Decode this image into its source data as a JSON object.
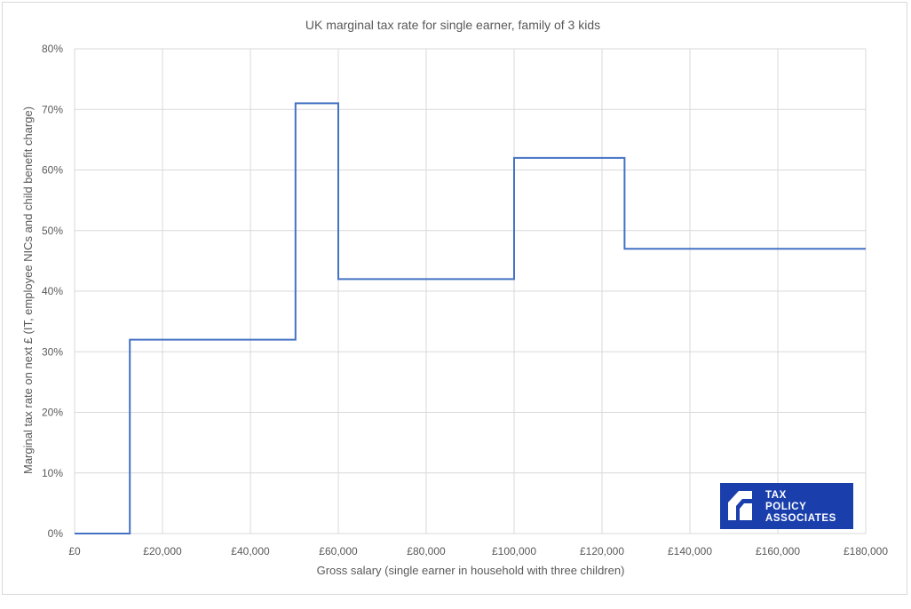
{
  "chart_data": {
    "type": "line",
    "title": "UK marginal tax rate for single earner, family of 3 kids",
    "xlabel": "Gross salary (single earner in household with three children)",
    "ylabel": "Marginal tax rate on next £ (IT, employee NICs and child benefit charge)",
    "xlim": [
      0,
      180000
    ],
    "ylim": [
      0,
      0.8
    ],
    "x_ticks": [
      0,
      20000,
      40000,
      60000,
      80000,
      100000,
      120000,
      140000,
      160000,
      180000
    ],
    "x_tick_labels": [
      "£0",
      "£20,000",
      "£40,000",
      "£60,000",
      "£80,000",
      "£100,000",
      "£120,000",
      "£140,000",
      "£160,000",
      "£180,000"
    ],
    "y_ticks": [
      0,
      0.1,
      0.2,
      0.3,
      0.4,
      0.5,
      0.6,
      0.7,
      0.8
    ],
    "y_tick_labels": [
      "0%",
      "10%",
      "20%",
      "30%",
      "40%",
      "50%",
      "60%",
      "70%",
      "80%"
    ],
    "grid": true,
    "series_color": "#4472c4",
    "series": [
      {
        "x": [
          0,
          12570,
          12570,
          50270,
          50270,
          60000,
          60000,
          100000,
          100000,
          125140,
          125140,
          180000
        ],
        "y": [
          0,
          0,
          0.32,
          0.32,
          0.71,
          0.71,
          0.42,
          0.42,
          0.62,
          0.62,
          0.47,
          0.47
        ]
      }
    ]
  },
  "logo": {
    "lines": [
      "TAX",
      "POLICY",
      "ASSOCIATES"
    ],
    "color": "#1a3fad"
  }
}
